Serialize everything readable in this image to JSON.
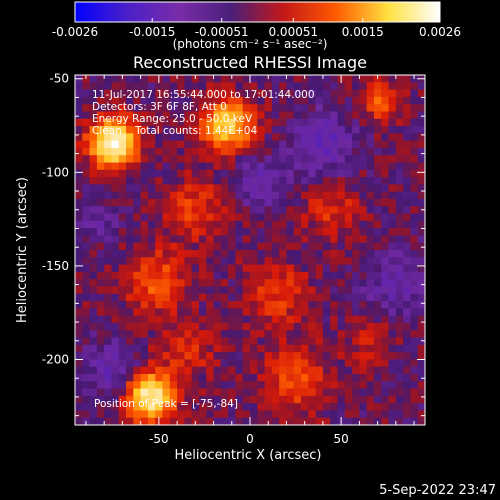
{
  "chart_data": {
    "type": "heatmap",
    "title": "Reconstructed RHESSI Image",
    "xlabel": "Heliocentric X (arcsec)",
    "ylabel": "Heliocentric Y (arcsec)",
    "xlim": [
      -96,
      96
    ],
    "ylim": [
      -235,
      -48
    ],
    "x_ticks": [
      -50,
      0,
      50
    ],
    "y_ticks": [
      -50,
      -100,
      -150,
      -200
    ],
    "colorbar": {
      "range": [
        -0.0026,
        0.0026
      ],
      "tick_labels": [
        "-0.0026",
        "-0.0015",
        "-0.00051",
        "0.00051",
        "0.0015",
        "0.0026"
      ],
      "label": "(photons cm⁻² s⁻¹ asec⁻²)",
      "colors": [
        "#0000ff",
        "#4a20c8",
        "#7a2ca8",
        "#4a1f7a",
        "#c41818",
        "#ff5a00",
        "#ffe040",
        "#ffffff"
      ]
    },
    "info_lines": [
      "11-Jul-2017 16:55:44.000 to 17:01:44.000",
      "Detectors: 3F 6F 8F, Att 0",
      "Energy Range: 25.0 - 50.0 keV",
      "Clean    Total counts: 1.44E+04"
    ],
    "peak_label": "Position of Peak = [-75,-84]",
    "timestamp": "5-Sep-2022 23:47",
    "sources": [
      {
        "x": -75,
        "y": -84,
        "peak": 0.0026,
        "sigma": 9
      },
      {
        "x": -12,
        "y": -75,
        "peak": 0.0018,
        "sigma": 10
      },
      {
        "x": -55,
        "y": -220,
        "peak": 0.0023,
        "sigma": 9
      },
      {
        "x": 72,
        "y": -62,
        "peak": 0.0011,
        "sigma": 7
      },
      {
        "x": -52,
        "y": -158,
        "peak": 0.0009,
        "sigma": 12
      },
      {
        "x": -30,
        "y": -120,
        "peak": 0.0007,
        "sigma": 12
      },
      {
        "x": -35,
        "y": -195,
        "peak": 0.0006,
        "sigma": 11
      },
      {
        "x": 25,
        "y": -210,
        "peak": 0.0008,
        "sigma": 13
      },
      {
        "x": 15,
        "y": -165,
        "peak": 0.0007,
        "sigma": 12
      },
      {
        "x": 45,
        "y": -120,
        "peak": 0.0006,
        "sigma": 11
      },
      {
        "x": 65,
        "y": -190,
        "peak": 0.0004,
        "sigma": 10
      },
      {
        "x": 40,
        "y": -85,
        "peak": -0.0008,
        "sigma": 12
      },
      {
        "x": 5,
        "y": -105,
        "peak": -0.0006,
        "sigma": 10
      },
      {
        "x": -75,
        "y": -205,
        "peak": -0.0007,
        "sigma": 10
      },
      {
        "x": 80,
        "y": -160,
        "peak": -0.0006,
        "sigma": 12
      },
      {
        "x": -85,
        "y": -125,
        "peak": -0.0004,
        "sigma": 9
      }
    ]
  }
}
